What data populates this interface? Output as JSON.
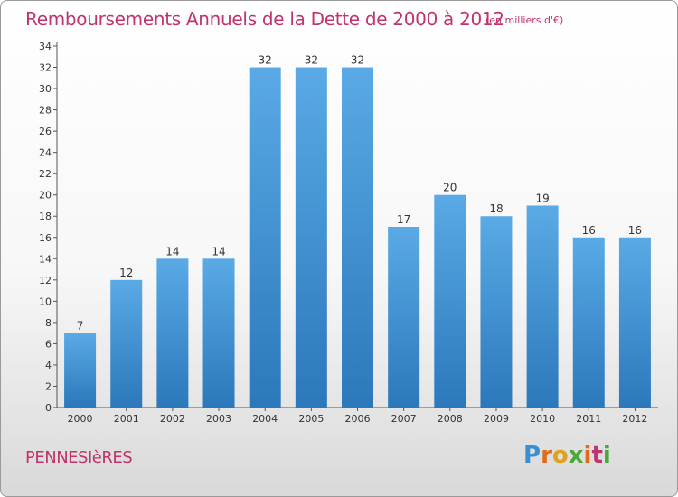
{
  "header": {
    "title": "Remboursements Annuels de la Dette de 2000 à 2012",
    "unit": "(en milliers d'€)"
  },
  "footer": {
    "commune": "PENNESIèRES",
    "logo": "Proxiti"
  },
  "colors": {
    "title": "#c0336e",
    "bar_top": "#5aaae6",
    "bar_bottom": "#2b78bb"
  },
  "chart_data": {
    "type": "bar",
    "title": "Remboursements Annuels de la Dette de 2000 à 2012",
    "categories": [
      "2000",
      "2001",
      "2002",
      "2003",
      "2004",
      "2005",
      "2006",
      "2007",
      "2008",
      "2009",
      "2010",
      "2011",
      "2012"
    ],
    "values": [
      7,
      12,
      14,
      14,
      32,
      32,
      32,
      17,
      20,
      18,
      19,
      16,
      16
    ],
    "ylim": [
      0,
      34
    ],
    "yticks": [
      0,
      2,
      4,
      6,
      8,
      10,
      12,
      14,
      16,
      18,
      20,
      22,
      24,
      26,
      28,
      30,
      32,
      34
    ],
    "grid": false,
    "xlabel": "",
    "ylabel": ""
  }
}
